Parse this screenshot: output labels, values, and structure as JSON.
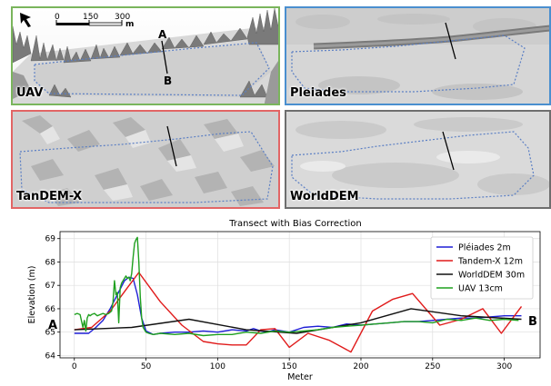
{
  "panels": {
    "uav": {
      "label": "UAV",
      "point_a": "A",
      "point_b": "B"
    },
    "pleiades": {
      "label": "Pleiades"
    },
    "tandem": {
      "label": "TanDEM-X"
    },
    "worlddem": {
      "label": "WorldDEM"
    }
  },
  "scale_bar": {
    "ticks": [
      "0",
      "150",
      "300"
    ],
    "unit": "m"
  },
  "colors": {
    "uav_border": "#7ab55c",
    "pleiades_border": "#4a8fcf",
    "tandem_border": "#e26565",
    "worlddem_border": "#6e6e6e",
    "outline": "#5b7fc4"
  },
  "chart_data": {
    "type": "line",
    "title": "Transect with Bias Correction",
    "xlabel": "Meter",
    "ylabel": "Elevation (m)",
    "xlim": [
      -10,
      325
    ],
    "ylim": [
      63.9,
      69.3
    ],
    "xticks": [
      0,
      50,
      100,
      150,
      200,
      250,
      300
    ],
    "yticks": [
      64,
      65,
      66,
      67,
      68,
      69
    ],
    "start_label": "A",
    "end_label": "B",
    "grid": true,
    "legend_position": "top-right",
    "series": [
      {
        "name": "Pléiades 2m",
        "color": "#1f1fd6",
        "x": [
          0,
          10,
          15,
          20,
          25,
          30,
          35,
          38,
          41,
          44,
          47,
          50,
          55,
          60,
          70,
          80,
          90,
          100,
          110,
          120,
          125,
          130,
          135,
          140,
          150,
          160,
          170,
          180,
          190,
          200,
          210,
          220,
          230,
          240,
          250,
          260,
          270,
          280,
          290,
          300,
          312
        ],
        "y": [
          64.95,
          64.95,
          65.2,
          65.5,
          66.0,
          66.6,
          67.2,
          67.35,
          67.3,
          66.6,
          65.6,
          65.05,
          64.9,
          64.95,
          65.0,
          65.0,
          65.05,
          65.0,
          65.1,
          65.05,
          65.15,
          65.05,
          65.0,
          65.1,
          65.0,
          65.2,
          65.25,
          65.2,
          65.35,
          65.3,
          65.35,
          65.4,
          65.45,
          65.45,
          65.5,
          65.55,
          65.6,
          65.6,
          65.65,
          65.7,
          65.7
        ]
      },
      {
        "name": "Tandem-X 12m",
        "color": "#e01a1a",
        "x": [
          0,
          12,
          25,
          37,
          45,
          60,
          75,
          90,
          100,
          110,
          120,
          130,
          140,
          150,
          163,
          178,
          193,
          208,
          222,
          236,
          255,
          270,
          285,
          298,
          312
        ],
        "y": [
          65.1,
          65.2,
          65.9,
          66.9,
          67.55,
          66.3,
          65.3,
          64.6,
          64.5,
          64.45,
          64.45,
          65.1,
          65.15,
          64.35,
          64.95,
          64.65,
          64.15,
          65.9,
          66.4,
          66.65,
          65.3,
          65.55,
          66.0,
          64.95,
          66.1
        ]
      },
      {
        "name": "WorldDEM 30m",
        "color": "#111111",
        "x": [
          0,
          40,
          80,
          120,
          155,
          200,
          235,
          270,
          312
        ],
        "y": [
          65.1,
          65.2,
          65.55,
          65.1,
          64.95,
          65.4,
          66.0,
          65.7,
          65.55
        ]
      },
      {
        "name": "UAV 13cm",
        "color": "#1fa01f",
        "x": [
          0,
          2,
          4,
          6,
          7,
          8,
          9,
          10,
          11,
          12,
          14,
          16,
          18,
          20,
          22,
          24,
          26,
          27,
          28,
          29,
          30,
          31,
          32,
          33,
          34,
          35,
          36,
          37,
          38,
          39,
          40,
          41,
          42,
          43,
          44,
          45,
          46,
          47,
          48,
          50,
          52,
          55,
          60,
          70,
          80,
          90,
          100,
          110,
          120,
          130,
          140,
          150,
          160,
          170,
          180,
          190,
          200,
          210,
          220,
          230,
          240,
          250,
          260,
          270,
          280,
          290,
          300,
          310
        ],
        "y": [
          65.75,
          65.8,
          65.75,
          65.2,
          65.5,
          65.05,
          65.6,
          65.75,
          65.7,
          65.75,
          65.8,
          65.7,
          65.75,
          65.8,
          65.75,
          65.8,
          65.9,
          66.3,
          67.2,
          66.6,
          66.7,
          65.4,
          66.9,
          67.1,
          67.2,
          67.3,
          67.4,
          67.3,
          67.35,
          67.2,
          67.5,
          68.2,
          68.8,
          68.95,
          69.05,
          68.0,
          66.5,
          65.6,
          65.2,
          65.0,
          64.95,
          64.9,
          64.95,
          64.9,
          64.95,
          64.85,
          64.9,
          64.9,
          65.0,
          64.95,
          65.05,
          65.0,
          65.05,
          65.1,
          65.2,
          65.25,
          65.3,
          65.35,
          65.4,
          65.45,
          65.45,
          65.4,
          65.55,
          65.5,
          65.6,
          65.5,
          65.55,
          65.5
        ]
      }
    ]
  }
}
